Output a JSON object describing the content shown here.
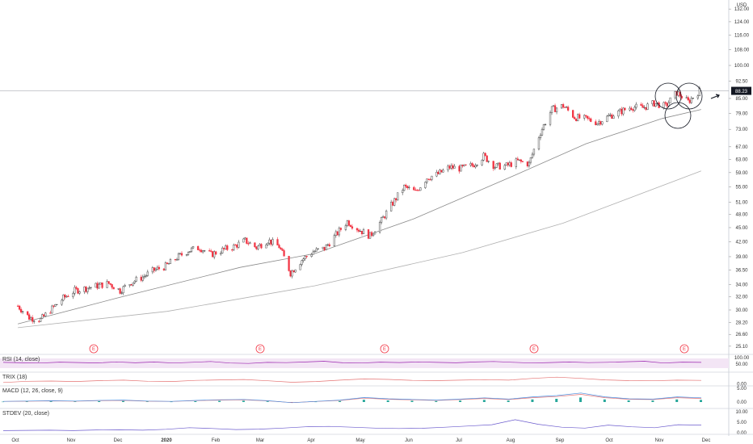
{
  "chart_data": {
    "type": "candlestick",
    "currency": "USD",
    "price_axis": {
      "ticks": [
        "132.00",
        "124.00",
        "116.00",
        "108.00",
        "100.00",
        "92.50",
        "85.00",
        "79.00",
        "73.00",
        "67.00",
        "63.00",
        "59.00",
        "55.00",
        "51.00",
        "48.00",
        "45.00",
        "42.00",
        "39.00",
        "36.50",
        "34.00",
        "32.00",
        "30.00",
        "28.20",
        "26.60",
        "25.10"
      ],
      "scale": "log",
      "range": [
        24.3,
        138
      ]
    },
    "last_price_label": "88.23",
    "last_price": 88.23,
    "x_axis": {
      "ticks": [
        "Oct",
        "Nov",
        "Dec",
        "2020",
        "Feb",
        "Mar",
        "Apr",
        "May",
        "Jun",
        "Jul",
        "Aug",
        "Sep",
        "Oct",
        "Nov",
        "Dec"
      ]
    },
    "earnings_markers": [
      "E",
      "E",
      "E",
      "E",
      "E"
    ],
    "ohlc_close_path": [
      [
        "2019-10-01",
        30.6
      ],
      [
        "2019-10-08",
        28.9
      ],
      [
        "2019-10-15",
        28.6
      ],
      [
        "2019-10-22",
        30.2
      ],
      [
        "2019-10-29",
        31.8
      ],
      [
        "2019-11-05",
        33.0
      ],
      [
        "2019-11-12",
        33.4
      ],
      [
        "2019-11-19",
        33.8
      ],
      [
        "2019-11-26",
        34.2
      ],
      [
        "2019-12-03",
        33.0
      ],
      [
        "2019-12-10",
        34.4
      ],
      [
        "2019-12-17",
        35.3
      ],
      [
        "2019-12-24",
        36.5
      ],
      [
        "2019-12-31",
        37.2
      ],
      [
        "2020-01-07",
        38.8
      ],
      [
        "2020-01-14",
        40.2
      ],
      [
        "2020-01-21",
        40.8
      ],
      [
        "2020-01-28",
        39.4
      ],
      [
        "2020-02-04",
        40.3
      ],
      [
        "2020-02-11",
        41.0
      ],
      [
        "2020-02-18",
        42.2
      ],
      [
        "2020-02-25",
        40.8
      ],
      [
        "2020-03-03",
        42.3
      ],
      [
        "2020-03-10",
        41.0
      ],
      [
        "2020-03-17",
        36.0
      ],
      [
        "2020-03-24",
        38.4
      ],
      [
        "2020-03-31",
        40.0
      ],
      [
        "2020-04-07",
        40.6
      ],
      [
        "2020-04-14",
        43.4
      ],
      [
        "2020-04-21",
        46.4
      ],
      [
        "2020-04-28",
        44.6
      ],
      [
        "2020-05-05",
        43.2
      ],
      [
        "2020-05-12",
        46.6
      ],
      [
        "2020-05-19",
        50.8
      ],
      [
        "2020-05-26",
        55.0
      ],
      [
        "2020-06-02",
        53.6
      ],
      [
        "2020-06-09",
        57.5
      ],
      [
        "2020-06-16",
        58.6
      ],
      [
        "2020-06-23",
        60.6
      ],
      [
        "2020-06-30",
        60.2
      ],
      [
        "2020-07-07",
        61.1
      ],
      [
        "2020-07-14",
        64.0
      ],
      [
        "2020-07-21",
        60.8
      ],
      [
        "2020-07-28",
        61.0
      ],
      [
        "2020-08-04",
        62.4
      ],
      [
        "2020-08-11",
        61.6
      ],
      [
        "2020-08-18",
        72.0
      ],
      [
        "2020-08-25",
        80.5
      ],
      [
        "2020-09-01",
        82.0
      ],
      [
        "2020-09-08",
        77.5
      ],
      [
        "2020-09-15",
        76.8
      ],
      [
        "2020-09-22",
        75.5
      ],
      [
        "2020-09-29",
        77.8
      ],
      [
        "2020-10-06",
        79.6
      ],
      [
        "2020-10-13",
        81.5
      ],
      [
        "2020-10-20",
        81.2
      ],
      [
        "2020-10-27",
        83.0
      ],
      [
        "2020-11-03",
        81.8
      ],
      [
        "2020-11-10",
        87.5
      ],
      [
        "2020-11-17",
        83.6
      ],
      [
        "2020-11-24",
        88.23
      ]
    ],
    "moving_averages": [
      {
        "points": [
          [
            "2019-10-01",
            28.0
          ],
          [
            "2019-12-01",
            31.8
          ],
          [
            "2020-02-15",
            37.0
          ],
          [
            "2020-04-01",
            39.6
          ],
          [
            "2020-06-01",
            47.0
          ],
          [
            "2020-08-01",
            58.0
          ],
          [
            "2020-09-15",
            68.0
          ],
          [
            "2020-11-01",
            77.0
          ],
          [
            "2020-11-25",
            80.5
          ]
        ]
      },
      {
        "points": [
          [
            "2019-10-01",
            27.5
          ],
          [
            "2020-01-01",
            29.8
          ],
          [
            "2020-04-01",
            33.8
          ],
          [
            "2020-07-01",
            39.8
          ],
          [
            "2020-09-01",
            46.0
          ],
          [
            "2020-11-25",
            59.5
          ]
        ]
      }
    ],
    "annotation_circles": 3,
    "indicators": [
      {
        "title": "RSI (14, close)",
        "axis_ticks": [
          "100.00",
          "50.00"
        ],
        "series": [
          63,
          60,
          58,
          65,
          62,
          59,
          67,
          60,
          66,
          58,
          64,
          70,
          58,
          55,
          63,
          61,
          66,
          72,
          60,
          58,
          65,
          62,
          67,
          63,
          60,
          66,
          70,
          64,
          58,
          62,
          66,
          61,
          64,
          68,
          72,
          58,
          65,
          63
        ]
      },
      {
        "title": "TRIX (18)",
        "axis_ticks": [
          "0.00"
        ],
        "series": [
          0.1,
          0.2,
          0.22,
          0.18,
          0.26,
          0.3,
          0.2,
          0.18,
          0.28,
          0.32,
          0.35,
          0.24,
          0.12,
          0.18,
          0.3,
          0.4,
          0.36,
          0.28,
          0.26,
          0.3,
          0.34,
          0.3,
          0.45,
          0.55,
          0.45,
          0.32,
          0.26,
          0.24,
          0.3,
          0.28
        ]
      },
      {
        "title": "MACD (12, 26, close, 9)",
        "axis_ticks": [
          "5.00",
          "0.00"
        ],
        "series": [
          0.2,
          0.3,
          0.4,
          0.3,
          0.5,
          0.6,
          0.3,
          0.2,
          0.5,
          0.7,
          0.8,
          0.4,
          -0.2,
          0.2,
          0.6,
          1.4,
          1.0,
          0.8,
          0.6,
          0.9,
          1.3,
          0.9,
          1.6,
          2.0,
          2.8,
          1.6,
          1.0,
          0.9,
          1.6,
          1.3
        ]
      },
      {
        "title": "STDEV (20, close)",
        "axis_ticks": [
          "10.00",
          "5.00",
          "0.00"
        ],
        "series": [
          1.0,
          1.1,
          1.2,
          1.0,
          1.3,
          1.4,
          1.2,
          1.6,
          2.4,
          2.0,
          1.5,
          1.7,
          2.2,
          2.8,
          3.0,
          2.6,
          2.2,
          2.0,
          2.1,
          2.6,
          3.2,
          3.8,
          6.2,
          4.0,
          2.6,
          2.2,
          3.6,
          2.8,
          2.4,
          3.8,
          3.6
        ]
      }
    ]
  },
  "colors": {
    "up": "#4a4a4a",
    "down": "#f23645",
    "ma_fast": "#8a8a8a",
    "ma_slow": "#b0b0b0",
    "rsi_line": "#9c27b0",
    "rsi_band": "#f3e5f5",
    "trix_line": "#e57373",
    "macd_line": "#4a90e2",
    "signal_line": "#e57373",
    "hist_up": "#26a69a",
    "hist_down": "#ef5350",
    "stdev_line": "#6a5acd",
    "grid": "#e0e3eb",
    "earnings": "#f23645",
    "last_price_bg": "#131722"
  }
}
